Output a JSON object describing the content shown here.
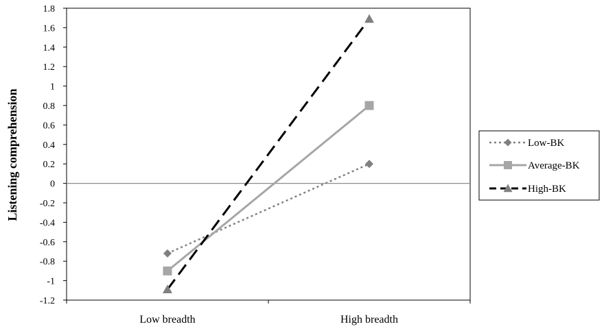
{
  "chart_data": {
    "type": "line",
    "title": "",
    "xlabel": "",
    "ylabel": "Listening comprehension",
    "categories": [
      "Low breadth",
      "High breadth"
    ],
    "ylim": [
      -1.2,
      1.8
    ],
    "yticks": [
      1.8,
      1.6,
      1.4,
      1.2,
      1,
      0.8,
      0.6,
      0.4,
      0.2,
      0,
      -0.2,
      -0.4,
      -0.6,
      -0.8,
      -1,
      -1.2
    ],
    "grid": false,
    "legend_position": "right",
    "series": [
      {
        "name": "Low-BK",
        "values": [
          -0.72,
          0.2
        ],
        "color": "#808080",
        "line": "dotted",
        "marker": "diamond"
      },
      {
        "name": "Average-BK",
        "values": [
          -0.9,
          0.8
        ],
        "color": "#a6a6a6",
        "line": "solid",
        "marker": "square"
      },
      {
        "name": "High-BK",
        "values": [
          -1.09,
          1.69
        ],
        "color": "#000000",
        "line": "dashed",
        "marker": "triangle",
        "marker_color": "#808080"
      }
    ]
  }
}
